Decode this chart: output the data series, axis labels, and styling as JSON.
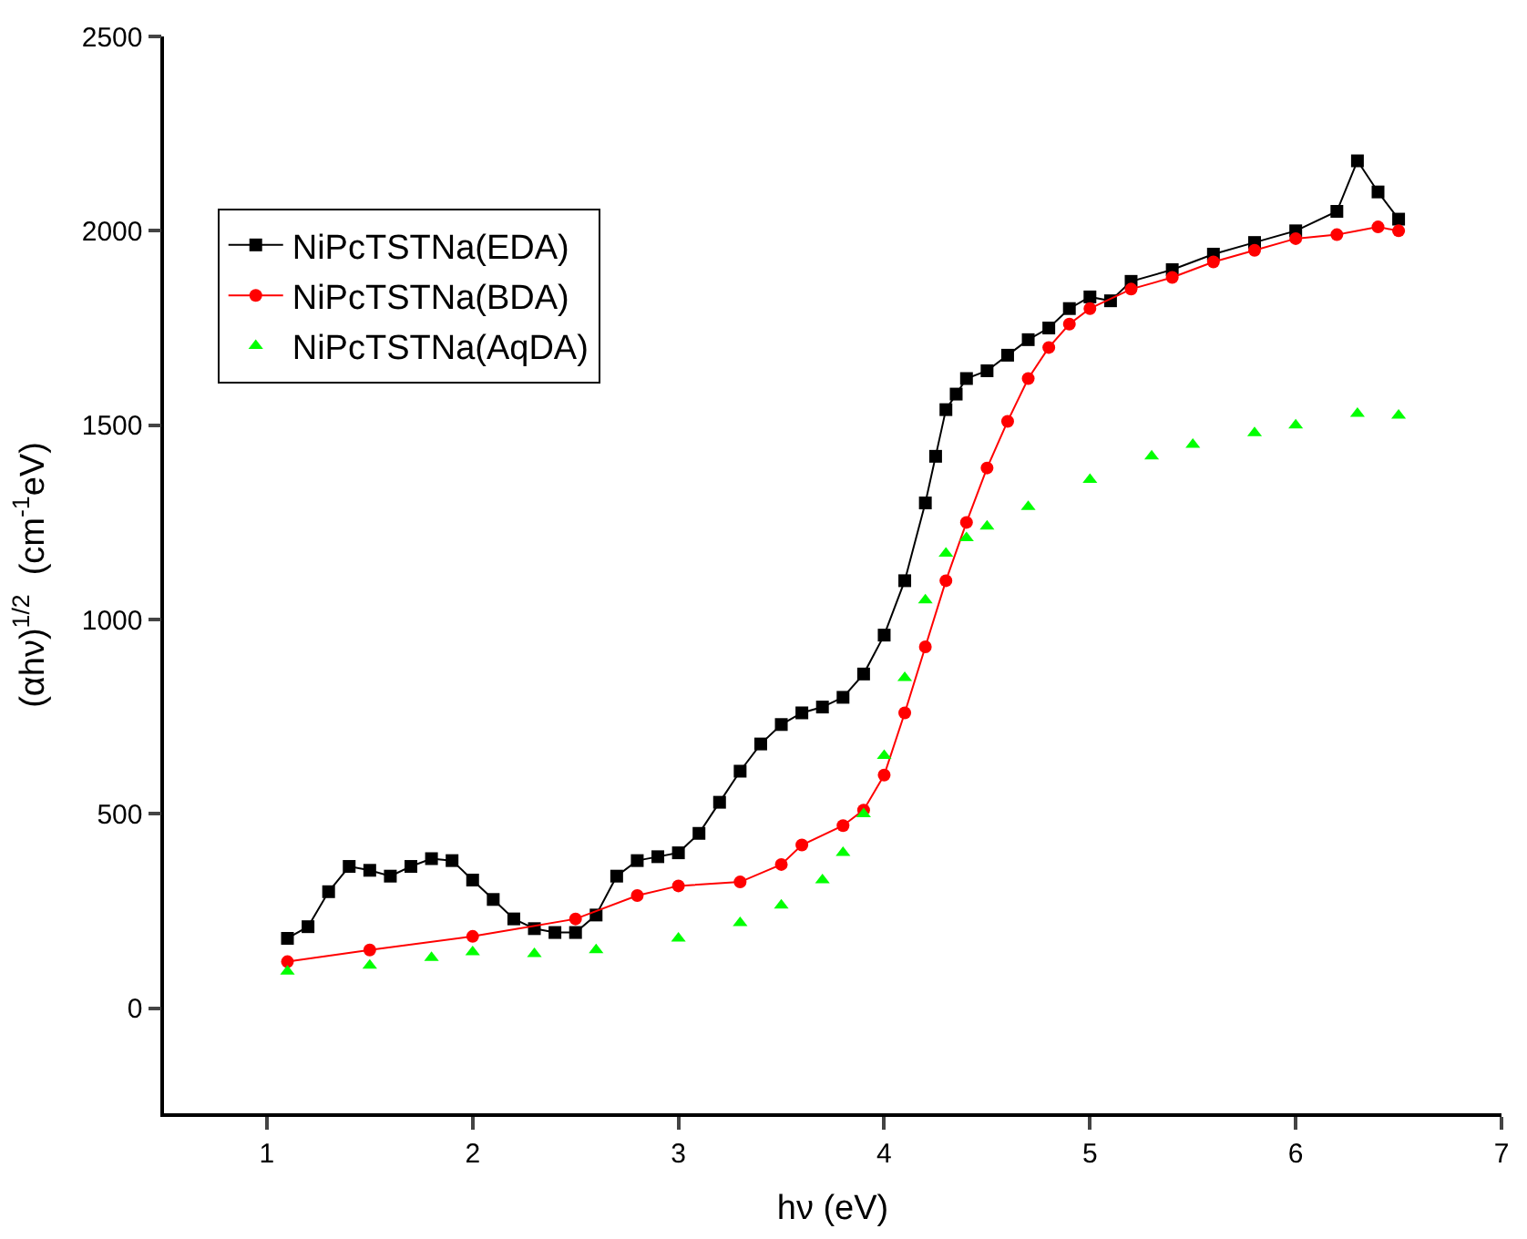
{
  "chart_data": {
    "type": "line",
    "xlabel": "hν (eV)",
    "ylabel": "(αhν)$^{1/2}$  (cm$^{-1}$eV)",
    "xlim": [
      0.5,
      7
    ],
    "xticks": [
      1,
      2,
      3,
      4,
      5,
      6,
      7
    ],
    "ylim": [
      -270,
      2500
    ],
    "yticks": [
      0,
      500,
      1000,
      1500,
      2000,
      2500
    ],
    "legend": "top left",
    "line_style": "solid",
    "series": [
      {
        "name": "NiPcTSTNa(EDA)",
        "color": "#000000",
        "marker": "square",
        "x": [
          1.1,
          1.2,
          1.3,
          1.4,
          1.5,
          1.6,
          1.7,
          1.8,
          1.9,
          2.0,
          2.1,
          2.2,
          2.3,
          2.4,
          2.5,
          2.6,
          2.7,
          2.8,
          2.9,
          3.0,
          3.1,
          3.2,
          3.3,
          3.4,
          3.5,
          3.6,
          3.7,
          3.8,
          3.9,
          4.0,
          4.1,
          4.2,
          4.25,
          4.3,
          4.35,
          4.4,
          4.5,
          4.6,
          4.7,
          4.8,
          4.9,
          5.0,
          5.1,
          5.2,
          5.4,
          5.6,
          5.8,
          6.0,
          6.2,
          6.3,
          6.4,
          6.5
        ],
        "values": [
          180,
          210,
          300,
          365,
          355,
          340,
          365,
          385,
          380,
          330,
          280,
          230,
          205,
          195,
          195,
          240,
          340,
          380,
          390,
          400,
          450,
          530,
          610,
          680,
          730,
          760,
          775,
          800,
          860,
          960,
          1100,
          1300,
          1420,
          1540,
          1580,
          1620,
          1640,
          1680,
          1720,
          1750,
          1800,
          1830,
          1820,
          1870,
          1900,
          1940,
          1970,
          2000,
          2050,
          2180,
          2100,
          2030
        ]
      },
      {
        "name": "NiPcTSTNa(BDA)",
        "color": "#ff0000",
        "marker": "circle",
        "x": [
          1.1,
          1.5,
          2.0,
          2.5,
          2.8,
          3.0,
          3.3,
          3.5,
          3.6,
          3.8,
          3.9,
          4.0,
          4.1,
          4.2,
          4.3,
          4.4,
          4.5,
          4.6,
          4.7,
          4.8,
          4.9,
          5.0,
          5.2,
          5.4,
          5.6,
          5.8,
          6.0,
          6.2,
          6.4,
          6.5
        ],
        "values": [
          120,
          150,
          185,
          230,
          290,
          315,
          325,
          370,
          420,
          470,
          510,
          600,
          760,
          930,
          1100,
          1250,
          1390,
          1510,
          1620,
          1700,
          1760,
          1800,
          1850,
          1880,
          1920,
          1950,
          1980,
          1990,
          2010,
          2000
        ]
      },
      {
        "name": "NiPcTSTNa(AqDA)",
        "color": "#00ff00",
        "marker": "triangle",
        "type": "scatter",
        "x": [
          1.1,
          1.5,
          1.8,
          2.0,
          2.3,
          2.6,
          3.0,
          3.3,
          3.5,
          3.7,
          3.8,
          3.9,
          4.0,
          4.1,
          4.2,
          4.3,
          4.4,
          4.5,
          4.7,
          5.0,
          5.3,
          5.5,
          5.8,
          6.0,
          6.3,
          6.5
        ],
        "values": [
          95,
          110,
          130,
          145,
          140,
          150,
          180,
          220,
          265,
          330,
          400,
          500,
          650,
          850,
          1050,
          1170,
          1210,
          1240,
          1290,
          1360,
          1420,
          1450,
          1480,
          1500,
          1530,
          1525
        ]
      }
    ]
  }
}
